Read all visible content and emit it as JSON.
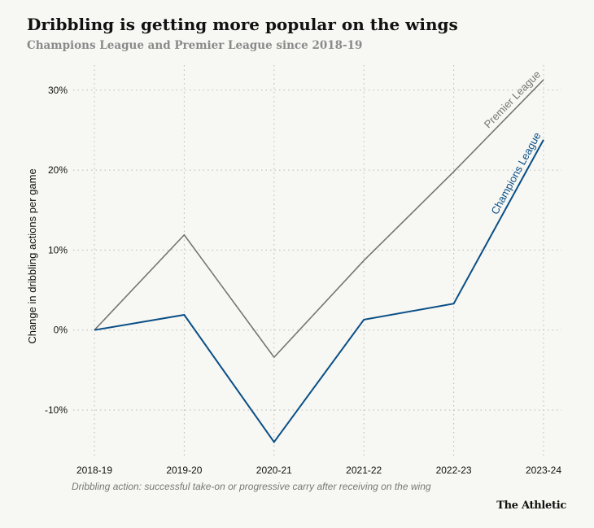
{
  "chart_data": {
    "type": "line",
    "title": "Dribbling is getting more popular on the wings",
    "subtitle": "Champions League and Premier League since 2018-19",
    "xlabel": "",
    "ylabel": "Change in dribbling actions per game",
    "categories": [
      "2018-19",
      "2019-20",
      "2020-21",
      "2021-22",
      "2022-23",
      "2023-24"
    ],
    "yticks": [
      -10,
      0,
      10,
      20,
      30
    ],
    "ytick_labels": [
      "-10%",
      "0%",
      "10%",
      "20%",
      "30%"
    ],
    "ylim": [
      -16,
      33
    ],
    "grid": true,
    "series": [
      {
        "name": "Premier League",
        "color": "#757575",
        "values": [
          0,
          11.9,
          -3.4,
          8.7,
          19.8,
          31.3
        ]
      },
      {
        "name": "Champions League",
        "color": "#0a4f86",
        "values": [
          0,
          1.9,
          -14.0,
          1.3,
          3.3,
          23.8
        ]
      }
    ],
    "note": "Dribbling action: successful take-on or progressive carry after receiving on the wing",
    "source": "The Athletic"
  }
}
